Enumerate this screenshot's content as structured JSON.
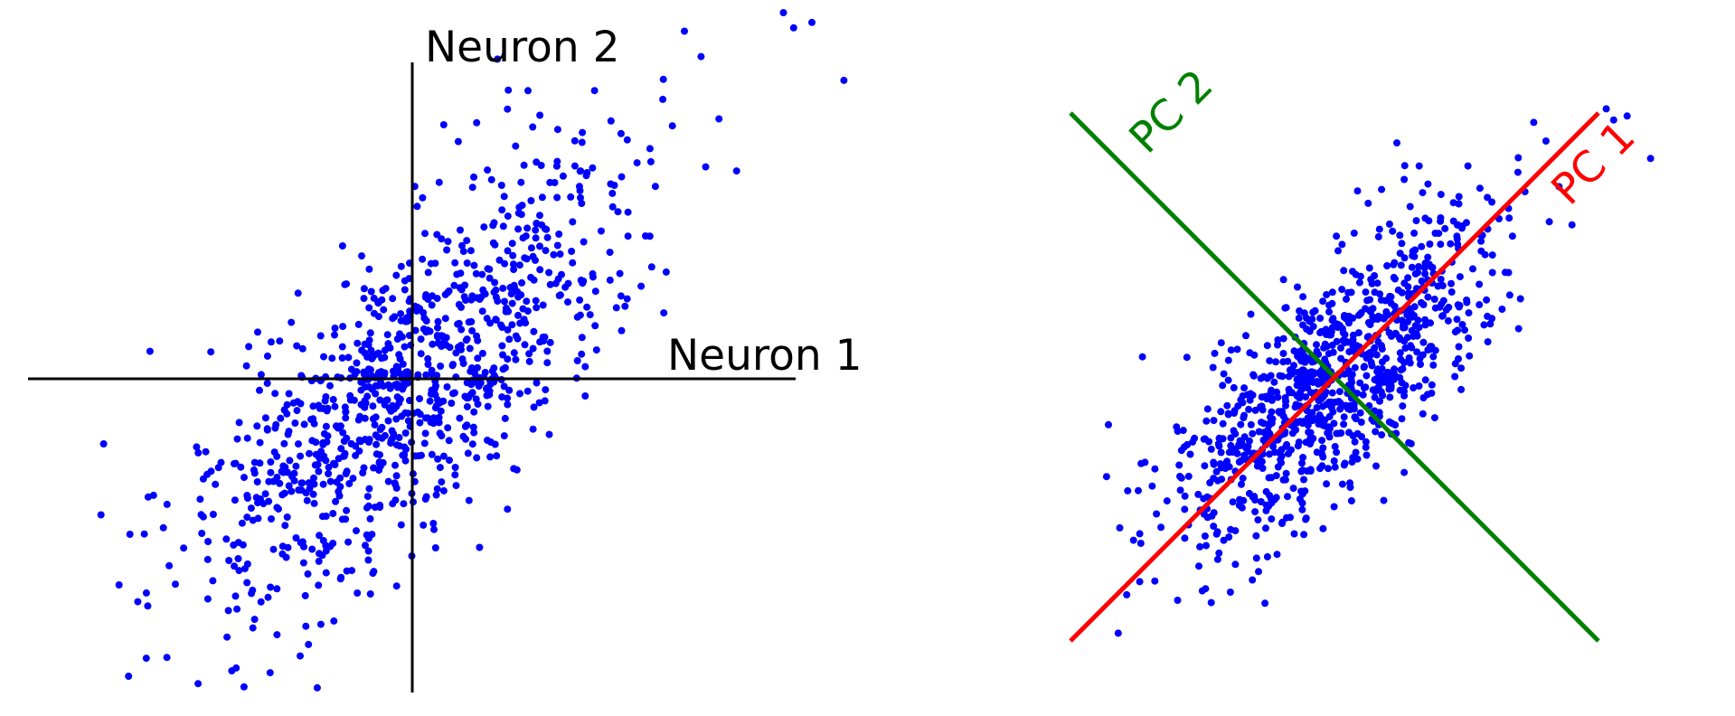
{
  "colors": {
    "background": "#ffffff",
    "points": "#0000ff",
    "axes": "#000000",
    "pc1": "#ff0000",
    "pc2": "#008000"
  },
  "chart_data": [
    {
      "type": "scatter",
      "x_axis_label": "Neuron 1",
      "y_axis_label": "Neuron 2",
      "xlim": [
        -3.5,
        3.5
      ],
      "ylim": [
        -2.9,
        2.9
      ],
      "n_points": 1000,
      "distribution": "bivariate normal, positive correlation",
      "correlation": 0.73,
      "std_x": 1.0,
      "std_y": 1.0,
      "mean": [
        0,
        0
      ],
      "grid": false
    },
    {
      "type": "scatter",
      "series_point_color": "blue",
      "xlim": [
        -3.5,
        3.5
      ],
      "ylim": [
        -3.5,
        3.5
      ],
      "n_points": 1000,
      "distribution": "bivariate normal, positive correlation",
      "correlation": 0.73,
      "std_x": 1.0,
      "std_y": 1.0,
      "mean": [
        0,
        0
      ],
      "lines": [
        {
          "label": "PC 1",
          "color": "red",
          "angle_deg": 45
        },
        {
          "label": "PC 2",
          "color": "green",
          "angle_deg": 135
        }
      ],
      "grid": false
    }
  ]
}
